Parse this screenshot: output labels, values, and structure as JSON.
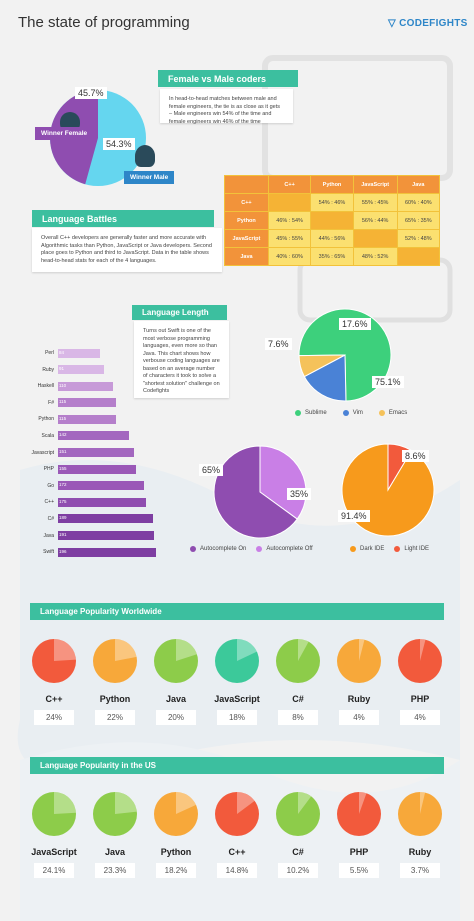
{
  "header": {
    "title": "The state of programming",
    "brand": "CODEFIGHTS"
  },
  "gender": {
    "heading": "Female vs Male coders",
    "text": "In head-to-head matches between male and female engineers, the tie is as close as it gets – Male engineers win 54% of the time and female engineers win 46% of the time",
    "female_pct": "45.7%",
    "male_pct": "54.3%",
    "winner_female": "Winner Female",
    "winner_male": "Winner Male"
  },
  "battles": {
    "heading": "Language Battles",
    "text": "Overall C++ developers are generally faster and more accurate with Algorithmic tasks than Python, JavaScript or Java developers. Second place goes to Python and third to JavaScript. Data in the table shows head-to-head stats for each of the 4 languages.",
    "columns": [
      "",
      "C++",
      "Python",
      "JavaScript",
      "Java"
    ],
    "rows": [
      [
        "C++",
        "",
        "54% : 46%",
        "55% : 45%",
        "60% : 40%"
      ],
      [
        "Python",
        "46% : 54%",
        "",
        "56% : 44%",
        "65% : 35%"
      ],
      [
        "JavaScript",
        "45% : 55%",
        "44% : 56%",
        "",
        "52% : 48%"
      ],
      [
        "Java",
        "40% : 60%",
        "35% : 65%",
        "48% : 52%",
        ""
      ]
    ]
  },
  "length": {
    "heading": "Language Length",
    "text": "Turns out Swift is one of the most verbose programming languages, even more so than Java. This chart shows how verbouse coding languages are based on an average number of characters it took to solve a \"shortest solution\" challenge on Codefights"
  },
  "chart_data": [
    {
      "type": "pie",
      "labels": [
        "Female",
        "Male"
      ],
      "values": [
        45.7,
        54.3
      ],
      "title": "Female vs Male coders"
    },
    {
      "type": "bar",
      "orientation": "horizontal",
      "title": "Language Length",
      "categories": [
        "Perl",
        "Ruby",
        "Haskell",
        "F#",
        "Python",
        "Scala",
        "Javascript",
        "PHP",
        "Go",
        "C++",
        "C#",
        "Java",
        "Swift"
      ],
      "values": [
        84,
        91,
        110,
        115,
        115,
        142,
        151,
        155,
        172,
        175,
        189,
        191,
        196
      ],
      "colors": [
        "#d9b7e6",
        "#d9b7e6",
        "#c79ad8",
        "#b57fcb",
        "#b57fcb",
        "#a367bf",
        "#a367bf",
        "#9a58b7",
        "#9a58b7",
        "#8f4db0",
        "#7e3ea2",
        "#7e3ea2",
        "#7e3ea2"
      ]
    },
    {
      "type": "pie",
      "labels": [
        "Sublime",
        "Vim",
        "Emacs"
      ],
      "values": [
        75.1,
        17.6,
        7.6
      ],
      "colors": [
        "#3dd07c",
        "#4a82d6",
        "#f5c25a"
      ]
    },
    {
      "type": "pie",
      "labels": [
        "Autocomplete On",
        "Autocomplete Off"
      ],
      "values": [
        65,
        35
      ],
      "colors": [
        "#8f4db0",
        "#c97fe6"
      ]
    },
    {
      "type": "pie",
      "labels": [
        "Dark IDE",
        "Light IDE"
      ],
      "values": [
        91.4,
        8.6
      ],
      "colors": [
        "#f79a1c",
        "#f25a3c"
      ]
    },
    {
      "type": "pie",
      "title": "Language Popularity Worldwide",
      "labels": [
        "C++",
        "Python",
        "Java",
        "JavaScript",
        "C#",
        "Ruby",
        "PHP"
      ],
      "values": [
        24,
        22,
        20,
        18,
        8,
        4,
        4
      ]
    },
    {
      "type": "pie",
      "title": "Language Popularity in the US",
      "labels": [
        "JavaScript",
        "Java",
        "Python",
        "C++",
        "C#",
        "PHP",
        "Ruby"
      ],
      "values": [
        24.1,
        23.3,
        18.2,
        14.8,
        10.2,
        5.5,
        3.7
      ]
    }
  ],
  "editors": {
    "sublime_pct": "75.1%",
    "vim_pct": "17.6%",
    "emacs_pct": "7.6%",
    "legend": [
      "Sublime",
      "Vim",
      "Emacs"
    ]
  },
  "autocomplete": {
    "on_pct": "65%",
    "off_pct": "35%",
    "legend": [
      "Autocomplete On",
      "Autocomplete Off"
    ]
  },
  "ide": {
    "dark_pct": "91.4%",
    "light_pct": "8.6%",
    "legend": [
      "Dark IDE",
      "Light IDE"
    ]
  },
  "popularity_worldwide": {
    "heading": "Language Popularity Worldwide",
    "items": [
      {
        "name": "C++",
        "pct": "24%",
        "value": 24,
        "color": "#f25a3c"
      },
      {
        "name": "Python",
        "pct": "22%",
        "value": 22,
        "color": "#f7a83a"
      },
      {
        "name": "Java",
        "pct": "20%",
        "value": 20,
        "color": "#8dcc4a"
      },
      {
        "name": "JavaScript",
        "pct": "18%",
        "value": 18,
        "color": "#3cc99a"
      },
      {
        "name": "C#",
        "pct": "8%",
        "value": 8,
        "color": "#8dcc4a"
      },
      {
        "name": "Ruby",
        "pct": "4%",
        "value": 4,
        "color": "#f7a83a"
      },
      {
        "name": "PHP",
        "pct": "4%",
        "value": 4,
        "color": "#f25a3c"
      }
    ]
  },
  "popularity_us": {
    "heading": "Language Popularity in the US",
    "items": [
      {
        "name": "JavaScript",
        "pct": "24.1%",
        "value": 24.1,
        "color": "#8dcc4a"
      },
      {
        "name": "Java",
        "pct": "23.3%",
        "value": 23.3,
        "color": "#8dcc4a"
      },
      {
        "name": "Python",
        "pct": "18.2%",
        "value": 18.2,
        "color": "#f7a83a"
      },
      {
        "name": "C++",
        "pct": "14.8%",
        "value": 14.8,
        "color": "#f25a3c"
      },
      {
        "name": "C#",
        "pct": "10.2%",
        "value": 10.2,
        "color": "#8dcc4a"
      },
      {
        "name": "PHP",
        "pct": "5.5%",
        "value": 5.5,
        "color": "#f25a3c"
      },
      {
        "name": "Ruby",
        "pct": "3.7%",
        "value": 3.7,
        "color": "#f7a83a"
      }
    ]
  }
}
